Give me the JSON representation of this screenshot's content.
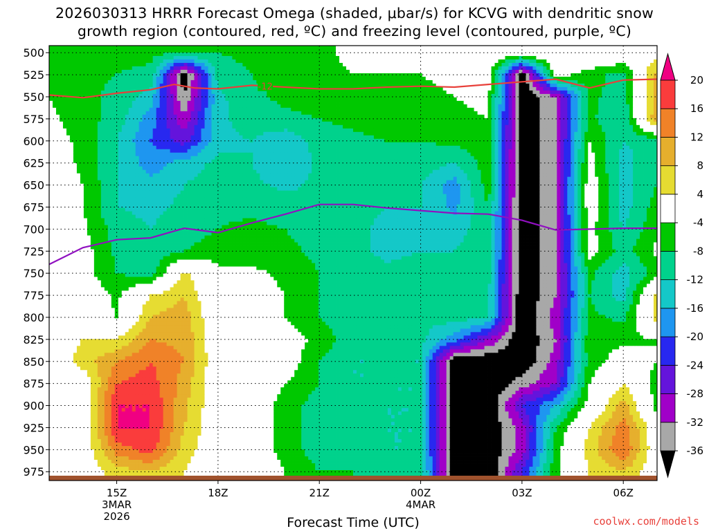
{
  "title": {
    "line1": "2026030313 HRRR Forecast Omega (shaded, μbar/s) for KCVG with dendritic snow",
    "line2": "growth region (contoured, red, ºC) and freezing level (contoured, purple, ºC)"
  },
  "credit": "coolwx.com/models",
  "chart_data": {
    "type": "heatmap",
    "xlabel": "Forecast Time (UTC)",
    "ylabel": "",
    "x_hours": [
      13,
      14,
      15,
      16,
      17,
      18,
      19,
      20,
      21,
      22,
      23,
      24,
      25,
      26,
      27,
      28,
      29,
      30,
      31
    ],
    "xlim": [
      13,
      31
    ],
    "x_ticks": [
      {
        "hour": 15,
        "label": "15Z",
        "sub1": "3MAR",
        "sub2": "2026"
      },
      {
        "hour": 18,
        "label": "18Z",
        "sub1": "",
        "sub2": ""
      },
      {
        "hour": 21,
        "label": "21Z",
        "sub1": "",
        "sub2": ""
      },
      {
        "hour": 24,
        "label": "00Z",
        "sub1": "4MAR",
        "sub2": ""
      },
      {
        "hour": 27,
        "label": "03Z",
        "sub1": "",
        "sub2": ""
      },
      {
        "hour": 30,
        "label": "06Z",
        "sub1": "",
        "sub2": ""
      }
    ],
    "y_levels": [
      500,
      525,
      550,
      575,
      600,
      625,
      650,
      675,
      700,
      725,
      750,
      775,
      800,
      825,
      850,
      875,
      900,
      925,
      950,
      975
    ],
    "ylim": [
      492,
      985
    ],
    "grid": true,
    "colorbar": {
      "boundaries": [
        -40,
        -36,
        -32,
        -28,
        -24,
        -20,
        -16,
        -12,
        -8,
        -4,
        4,
        8,
        12,
        16,
        20,
        24
      ],
      "labels": [
        "-36",
        "-32",
        "-28",
        "-24",
        "-20",
        "-16",
        "-12",
        "-8",
        "-4",
        "4",
        "8",
        "12",
        "16",
        "20"
      ],
      "colors": [
        "#000000",
        "#a8a8a8",
        "#a000c8",
        "#6414dc",
        "#2828f0",
        "#1e96f0",
        "#14c8c8",
        "#00d28c",
        "#00c800",
        "#ffffff",
        "#e6dc32",
        "#e6af2d",
        "#f08228",
        "#fa3c3c",
        "#f00082"
      ]
    },
    "omega": [
      [
        -6,
        -7,
        -7,
        -7,
        -7,
        -8,
        -7,
        -6,
        -5,
        -3,
        -2,
        -1,
        0,
        0,
        1,
        2,
        2,
        2,
        2
      ],
      [
        -5,
        -7,
        -8,
        -9,
        -40,
        -10,
        -8,
        -6,
        -5,
        -4,
        -4,
        -4,
        -3,
        -1,
        -40,
        -2,
        -6,
        -10,
        10
      ],
      [
        -4,
        -7,
        -9,
        -14,
        -36,
        -13,
        -9,
        -7,
        -6,
        -5,
        -5,
        -5,
        -4,
        -3,
        -40,
        -32,
        -7,
        -10,
        10
      ],
      [
        -3,
        -6,
        -10,
        -18,
        -31,
        -13,
        -10,
        -9,
        -8,
        -7,
        -6,
        -6,
        -5,
        -4,
        -40,
        -32,
        -7,
        -12,
        12
      ],
      [
        -2,
        -5,
        -12,
        -20,
        -26,
        -13,
        -12,
        -15,
        -10,
        -9,
        -8,
        -8,
        -7,
        -5,
        -40,
        -32,
        -4,
        -12,
        -10
      ],
      [
        -1,
        -5,
        -12,
        -18,
        -14,
        -11,
        -12,
        -16,
        -11,
        -10,
        -10,
        -10,
        -12,
        -6,
        -40,
        -32,
        -2,
        -14,
        -8
      ],
      [
        0,
        -4,
        -12,
        -15,
        -12,
        -10,
        -11,
        -13,
        -11,
        -11,
        -11,
        -12,
        -18,
        -6,
        -40,
        -32,
        -1,
        -14,
        -8
      ],
      [
        0,
        -4,
        -12,
        -13,
        -11,
        -9,
        -9,
        -10,
        -11,
        -11,
        -12,
        -12,
        -17,
        -8,
        -40,
        -32,
        -1,
        -14,
        -6
      ],
      [
        0,
        -3,
        -10,
        -12,
        -10,
        -8,
        -7,
        -8,
        -10,
        -11,
        -13,
        -12,
        -14,
        -9,
        -40,
        -32,
        -2,
        -12,
        -5
      ],
      [
        0,
        -2,
        -9,
        -11,
        -8,
        -6,
        -6,
        -7,
        -9,
        -11,
        -13,
        -12,
        -12,
        -9,
        -40,
        -32,
        -2,
        -10,
        -3
      ],
      [
        0,
        -2,
        -8,
        -10,
        5,
        -3,
        -3,
        -5,
        -8,
        -10,
        -11,
        -10,
        -11,
        -10,
        -40,
        -32,
        -7,
        -14,
        -6
      ],
      [
        0,
        0,
        -5,
        4,
        8,
        -2,
        -2,
        -4,
        -8,
        -10,
        -12,
        -11,
        -10,
        -12,
        -40,
        -32,
        -8,
        -14,
        6
      ],
      [
        0,
        0,
        -4,
        8,
        10,
        -1,
        -1,
        -4,
        -8,
        -11,
        -12,
        -11,
        -10,
        -12,
        -40,
        -30,
        -7,
        -9,
        6
      ],
      [
        0,
        4,
        4,
        12,
        11,
        0,
        0,
        -2,
        -5,
        -11,
        -12,
        -11,
        -18,
        -28,
        -40,
        -32,
        -5,
        -5,
        -4
      ],
      [
        0,
        6,
        12,
        16,
        12,
        0,
        0,
        -1,
        -8,
        -12,
        -12,
        -12,
        -40,
        -40,
        -40,
        -30,
        -6,
        -2,
        -4
      ],
      [
        0,
        0,
        16,
        18,
        10,
        0,
        0,
        -4,
        -8,
        -12,
        -12,
        -12,
        -40,
        -40,
        -34,
        -28,
        -4,
        4,
        -6
      ],
      [
        0,
        0,
        20,
        20,
        9,
        0,
        0,
        -6,
        -10,
        -11,
        -12,
        -12,
        -40,
        -40,
        -24,
        -16,
        -2,
        10,
        -6
      ],
      [
        0,
        0,
        20,
        20,
        8,
        0,
        0,
        -6,
        -10,
        -11,
        -12,
        -12,
        -40,
        -40,
        -30,
        -8,
        4,
        14,
        0
      ],
      [
        0,
        0,
        14,
        18,
        6,
        0,
        0,
        -6,
        -10,
        -10,
        -12,
        -12,
        -40,
        -40,
        -30,
        -6,
        6,
        16,
        0
      ],
      [
        0,
        0,
        6,
        8,
        4,
        0,
        0,
        -4,
        -8,
        -8,
        -10,
        -10,
        -40,
        -40,
        -24,
        -5,
        4,
        8,
        0
      ]
    ],
    "dendritic_contour": {
      "label": "-12",
      "points": [
        [
          13,
          548
        ],
        [
          14,
          551
        ],
        [
          15,
          546
        ],
        [
          16,
          542
        ],
        [
          16.7,
          536
        ],
        [
          17.3,
          540
        ],
        [
          18,
          541
        ],
        [
          19,
          537
        ],
        [
          20,
          539
        ],
        [
          21,
          541
        ],
        [
          22,
          541
        ],
        [
          23,
          539
        ],
        [
          24,
          538
        ],
        [
          25,
          539
        ],
        [
          26,
          536
        ],
        [
          27,
          533
        ],
        [
          28,
          530
        ],
        [
          29,
          540
        ],
        [
          30,
          531
        ],
        [
          31,
          530
        ]
      ]
    },
    "freezing_level": {
      "points": [
        [
          13,
          740
        ],
        [
          14,
          721
        ],
        [
          15,
          712
        ],
        [
          16,
          710
        ],
        [
          17,
          699
        ],
        [
          18,
          704
        ],
        [
          19,
          693
        ],
        [
          20,
          683
        ],
        [
          21,
          672
        ],
        [
          22,
          672
        ],
        [
          23,
          676
        ],
        [
          24,
          679
        ],
        [
          25,
          682
        ],
        [
          26,
          683
        ],
        [
          27,
          690
        ],
        [
          28,
          701
        ],
        [
          29,
          700
        ],
        [
          30,
          699
        ],
        [
          31,
          699
        ]
      ]
    }
  }
}
